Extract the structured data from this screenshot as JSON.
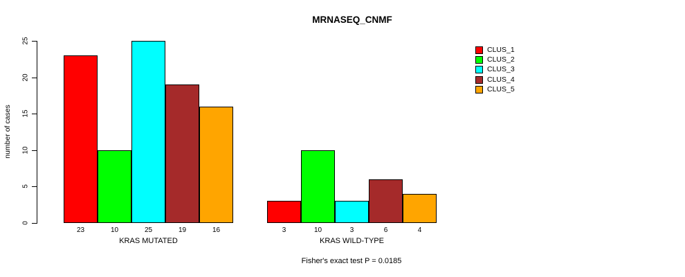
{
  "title": "MRNASEQ_CNMF",
  "ylabel": "number of cases",
  "footer": "Fisher's exact test P = 0.0185",
  "legend": {
    "items": [
      {
        "label": "CLUS_1",
        "color": "#FF0000"
      },
      {
        "label": "CLUS_2",
        "color": "#00FF00"
      },
      {
        "label": "CLUS_3",
        "color": "#00FFFF"
      },
      {
        "label": "CLUS_4",
        "color": "#A52A2A"
      },
      {
        "label": "CLUS_5",
        "color": "#FFA500"
      }
    ]
  },
  "chart_data": {
    "type": "bar",
    "title": "MRNASEQ_CNMF",
    "xlabel": "",
    "ylabel": "number of cases",
    "ylim": [
      0,
      25
    ],
    "yticks": [
      0,
      5,
      10,
      15,
      20,
      25
    ],
    "grid": false,
    "legend_position": "top-right",
    "bar_border_color": "#000000",
    "categories": [
      "KRAS MUTATED",
      "KRAS WILD-TYPE"
    ],
    "series": [
      {
        "name": "CLUS_1",
        "color": "#FF0000",
        "values": [
          23,
          3
        ]
      },
      {
        "name": "CLUS_2",
        "color": "#00FF00",
        "values": [
          10,
          10
        ]
      },
      {
        "name": "CLUS_3",
        "color": "#00FFFF",
        "values": [
          25,
          3
        ]
      },
      {
        "name": "CLUS_4",
        "color": "#A52A2A",
        "values": [
          19,
          6
        ]
      },
      {
        "name": "CLUS_5",
        "color": "#FFA500",
        "values": [
          16,
          4
        ]
      }
    ],
    "bar_value_labels": true,
    "annotation": "Fisher's exact test P = 0.0185"
  }
}
